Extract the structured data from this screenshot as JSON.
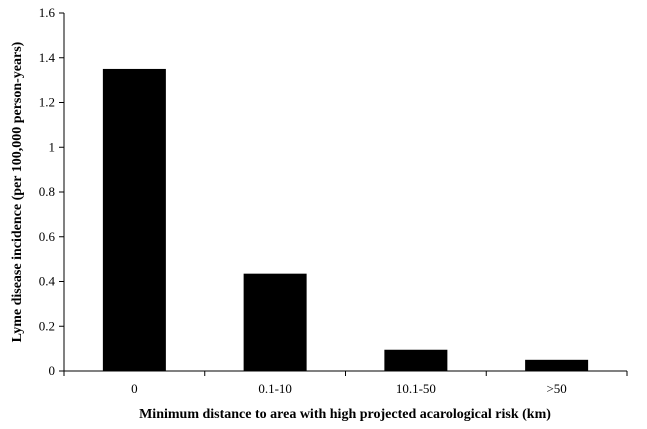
{
  "chart_data": {
    "type": "bar",
    "categories": [
      "0",
      "0.1-10",
      "10.1-50",
      ">50"
    ],
    "values": [
      1.35,
      0.435,
      0.095,
      0.05
    ],
    "title": "",
    "xlabel": "Minimum distance to area with high projected acarological risk (km)",
    "ylabel": "Lyme disease incidence (per 100,000 person-years)",
    "ylim": [
      0,
      1.6
    ],
    "yticks": [
      "0",
      "0.2",
      "0.4",
      "0.6",
      "0.8",
      "1",
      "1.2",
      "1.4",
      "1.6"
    ],
    "grid": false,
    "legend": "none",
    "bar_color": "#000000"
  }
}
